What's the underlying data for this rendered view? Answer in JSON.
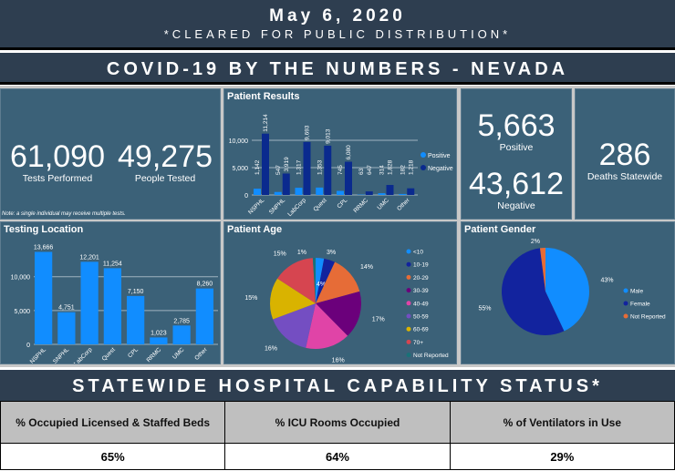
{
  "header": {
    "date": "May 6, 2020",
    "subtitle": "*CLEARED FOR PUBLIC DISTRIBUTION*"
  },
  "title": "COVID-19 BY THE NUMBERS - NEVADA",
  "kpis": {
    "tests": {
      "value": "61,090",
      "label": "Tests Performed"
    },
    "people": {
      "value": "49,275",
      "label": "People Tested"
    },
    "note": "Note: a single individual may receive multiple tests.",
    "positive": {
      "value": "5,663",
      "label": "Positive"
    },
    "negative": {
      "value": "43,612",
      "label": "Negative"
    },
    "deaths": {
      "value": "286",
      "label": "Deaths Statewide"
    }
  },
  "chart_data": [
    {
      "title": "Patient Results",
      "type": "bar",
      "categories": [
        "NSPHL",
        "SNPHL",
        "LabCorp",
        "Quest",
        "CPL",
        "RRMC",
        "UMC",
        "Other"
      ],
      "series": [
        {
          "name": "Positive",
          "color": "#118dff",
          "values": [
            1142,
            547,
            1317,
            1353,
            745,
            63,
            314,
            182
          ]
        },
        {
          "name": "Negative",
          "color": "#0a2a8e",
          "values": [
            11214,
            3919,
            9693,
            9013,
            6080,
            647,
            1828,
            1218
          ]
        }
      ],
      "yticks": [
        "0",
        "5,000",
        "10,000"
      ],
      "ylim": [
        0,
        12000
      ],
      "legend": "right"
    },
    {
      "title": "Testing Location",
      "type": "bar",
      "categories": [
        "NSPHL",
        "SNPHL",
        "LabCorp",
        "Quest",
        "CPL",
        "RRMC",
        "UMC",
        "Other"
      ],
      "values": [
        13666,
        4751,
        12201,
        11254,
        7150,
        1023,
        2785,
        8260
      ],
      "labels": [
        "13,666",
        "4,751",
        "12,201",
        "11,254",
        "7,150",
        "1,023",
        "2,785",
        "8,260"
      ],
      "color": "#118dff",
      "yticks": [
        "0",
        "5,000",
        "10,000"
      ],
      "ylim": [
        0,
        14000
      ]
    },
    {
      "title": "Patient Age",
      "type": "pie",
      "categories": [
        "<10",
        "10-19",
        "20-29",
        "30-39",
        "40-49",
        "50-59",
        "60-69",
        "70+",
        "Not Reported"
      ],
      "values": [
        3,
        4,
        14,
        17,
        16,
        16,
        15,
        15,
        1
      ],
      "colors": [
        "#118dff",
        "#12239e",
        "#e66c37",
        "#6b007b",
        "#e044a7",
        "#744ec2",
        "#d9b300",
        "#d64550",
        "#197278"
      ],
      "legend": "right"
    },
    {
      "title": "Patient Gender",
      "type": "pie",
      "categories": [
        "Male",
        "Female",
        "Not Reported"
      ],
      "values": [
        43,
        55,
        2
      ],
      "colors": [
        "#118dff",
        "#12239e",
        "#e66c37"
      ],
      "legend": "right"
    }
  ],
  "hospital": {
    "title": "STATEWIDE HOSPITAL CAPABILITY STATUS*",
    "headers": [
      "% Occupied Licensed & Staffed Beds",
      "% ICU Rooms Occupied",
      "% of Ventilators in Use"
    ],
    "values": [
      "65%",
      "64%",
      "29%"
    ]
  }
}
